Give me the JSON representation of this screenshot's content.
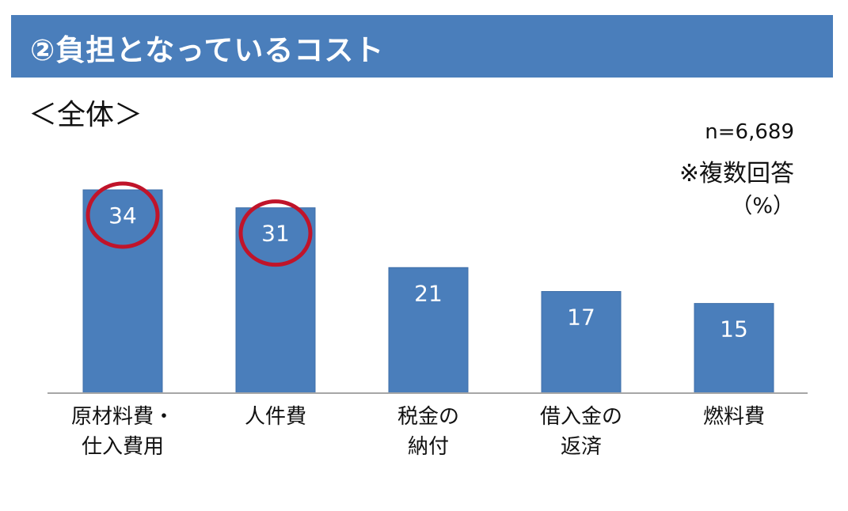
{
  "header": {
    "title": "②負担となっているコスト",
    "accent_color": "#4a7ebb"
  },
  "subtitle": "＜全体＞",
  "notes": {
    "sample": "n=6,689",
    "multiple": "※複数回答",
    "unit": "（%）"
  },
  "chart_data": {
    "type": "bar",
    "categories": [
      [
        "原材料費・",
        "仕入費用"
      ],
      [
        "人件費"
      ],
      [
        "税金の",
        "納付"
      ],
      [
        "借入金の",
        "返済"
      ],
      [
        "燃料費"
      ]
    ],
    "values": [
      34,
      31,
      21,
      17,
      15
    ],
    "highlighted": [
      true,
      true,
      false,
      false,
      false
    ],
    "bar_color": "#4a7ebb",
    "highlight_color": "#c0142a",
    "ylim": [
      0,
      34
    ],
    "grid": false,
    "xlabel": "",
    "ylabel": ""
  }
}
